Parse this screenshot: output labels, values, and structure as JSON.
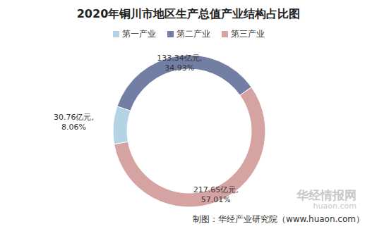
{
  "chart_data": {
    "type": "pie",
    "title": "2020年铜川市地区生产总值产业结构占比图",
    "categories": [
      "第一产业",
      "第二产业",
      "第三产业"
    ],
    "values": [
      30.76,
      133.34,
      217.65
    ],
    "value_labels": [
      [
        "30.76亿元,",
        "8.06%"
      ],
      [
        "133.34亿元,",
        "34.93%"
      ],
      [
        "217.65亿元,",
        "57.01%"
      ]
    ],
    "colors": [
      "#b4d3e5",
      "#737ea4",
      "#d6a3a3"
    ],
    "legend": "top",
    "data_labels": true,
    "source": "制图：华经产业研究院（www.huaon.com）",
    "watermark": [
      "华经情报网",
      "huaon.com"
    ]
  }
}
